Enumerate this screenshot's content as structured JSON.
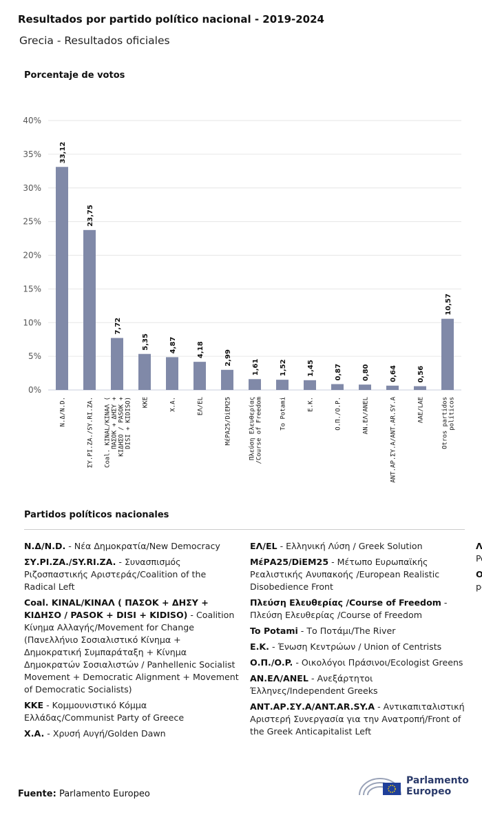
{
  "title": "Resultados por partido político nacional - 2019-2024",
  "subtitle": "Grecia - Resultados oficiales",
  "chart_data": {
    "type": "bar",
    "ylabel": "Porcentaje de votos",
    "ylim": [
      0,
      40
    ],
    "yticks": [
      "0%",
      "5%",
      "10%",
      "15%",
      "20%",
      "25%",
      "30%",
      "35%",
      "40%"
    ],
    "grid": true,
    "bar_color": "#8089a8",
    "categories": [
      [
        "N.Δ/N.D."
      ],
      [
        "ΣΥ.ΡΙ.ΖΑ./SY.RI.ZA."
      ],
      [
        "Coal. KINAL/KINAΛ (",
        "ΠΑΣΟΚ + ΔΗΣΥ +",
        "ΚΙΔΗΣΟ / PASOK +",
        "DISI + KIDISO)"
      ],
      [
        "KKE"
      ],
      [
        "X.A."
      ],
      [
        "ΕΛ/EL"
      ],
      [
        "ΜέΡΑ25/DiEM25"
      ],
      [
        "Πλεύση Ελευθερίας",
        "/Course of Freedom"
      ],
      [
        "To Potami"
      ],
      [
        "E.K."
      ],
      [
        "Ο.Π./O.P."
      ],
      [
        "ΑΝ.ΕΛ/ANEL"
      ],
      [
        "ΑΝΤ.ΑΡ.ΣΥ.Α/ANT.AR.SY.A"
      ],
      [
        "ΛΑΕ/LAE"
      ],
      [
        "Otros partidos",
        "políticos"
      ]
    ],
    "values": [
      33.12,
      23.75,
      7.72,
      5.35,
      4.87,
      4.18,
      2.99,
      1.61,
      1.52,
      1.45,
      0.87,
      0.8,
      0.64,
      0.56,
      10.57
    ],
    "value_labels": [
      "33,12",
      "23,75",
      "7,72",
      "5,35",
      "4,87",
      "4,18",
      "2,99",
      "1,61",
      "1,52",
      "1,45",
      "0,87",
      "0,80",
      "0,64",
      "0,56",
      "10,57"
    ]
  },
  "legend": {
    "title": "Partidos políticos nacionales",
    "items": [
      {
        "abbr": "N.Δ/N.D.",
        "desc": "Νέα Δημοκρατία/New Democracy"
      },
      {
        "abbr": "ΣΥ.ΡΙ.ΖΑ./SY.RI.ZA.",
        "desc": "Συνασπισμός Ριζοσπαστικής Αριστεράς/Coalition of the Radical Left"
      },
      {
        "abbr": "Coal. KINAL/KINAΛ ( ΠΑΣΟΚ + ΔΗΣΥ + ΚΙΔΗΣΟ / PASOK + DISI + KIDISO)",
        "desc": "Coalition Κίνημα Αλλαγής/Movement for Change (Πανελλήνιο Σοσιαλιστικό Κίνημα + Δημοκρατική Συμπαράταξη + Κίνημα Δημοκρατών Σοσιαλιστών / Panhellenic Socialist Movement + Democratic Alignment + Movement of Democratic Socialists)"
      },
      {
        "abbr": "KKE",
        "desc": "Κομμουνιστικό Κόμμα Ελλάδας/Communist Party of Greece"
      },
      {
        "abbr": "X.A.",
        "desc": "Χρυσή Αυγή/Golden Dawn"
      },
      {
        "abbr": "ΕΛ/EL",
        "desc": "Ελληνική Λύση / Greek Solution"
      },
      {
        "abbr": "ΜέΡΑ25/DiEM25",
        "desc": "Μέτωπο Ευρωπαϊκής Ρεαλιστικής Ανυπακοής /European Realistic Disobedience Front"
      },
      {
        "abbr": "Πλεύση Ελευθερίας /Course of Freedom",
        "desc": "Πλεύση Ελευθερίας /Course of Freedom"
      },
      {
        "abbr": "To Potami",
        "desc": "Το Ποτάμι/The River"
      },
      {
        "abbr": "E.K.",
        "desc": "Ένωση Κεντρώων / Union of Centrists"
      },
      {
        "abbr": "Ο.Π./O.P.",
        "desc": "Οικολόγοι Πράσινοι/Ecologist Greens"
      },
      {
        "abbr": "ΑΝ.ΕΛ/ANEL",
        "desc": "Ανεξάρτητοι Έλληνες/Independent Greeks"
      },
      {
        "abbr": "ΑΝΤ.ΑΡ.ΣΥ.Α/ANT.AR.SY.A",
        "desc": "Αντικαπιταλιστική Αριστερή Συνεργασία για την Ανατροπή/Front of the Greek Anticapitalist Left"
      },
      {
        "abbr": "ΛΑΕ/LAE",
        "desc": "Λαϊκή Ενότητα-Μέτωπο ανατροπής / Popular Unity"
      },
      {
        "abbr": "Otros partidos políticos",
        "desc": "Otros partidos políticos"
      }
    ]
  },
  "source": {
    "label": "Fuente:",
    "value": "Parlamento Europeo"
  },
  "logo": {
    "line1": "Parlamento",
    "line2": "Europeo"
  }
}
